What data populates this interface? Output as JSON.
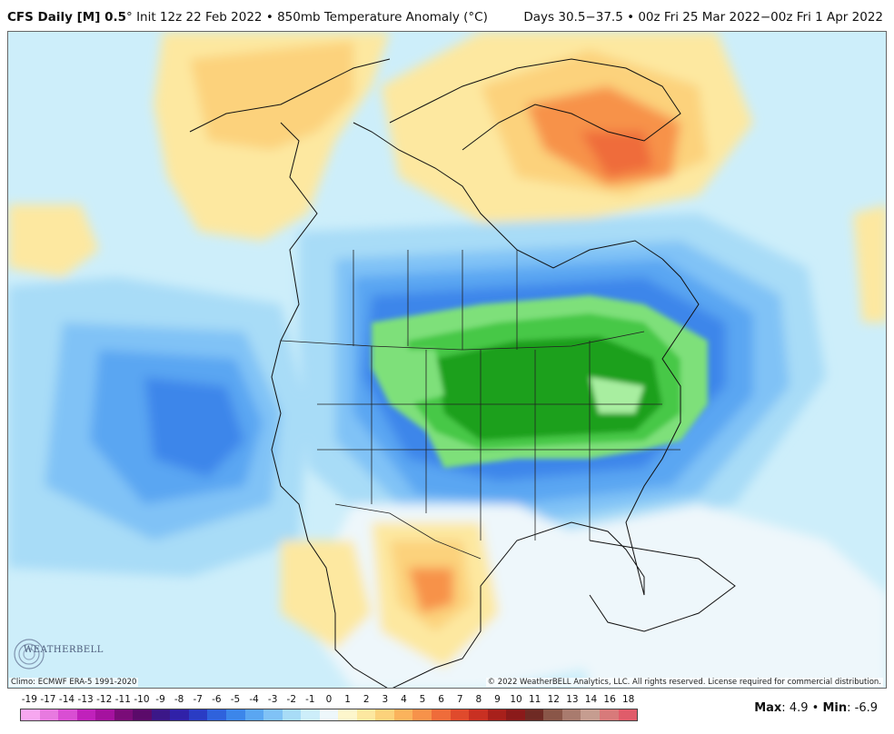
{
  "header": {
    "model": "CFS Daily [M] 0.5",
    "degree": "°",
    "init": "Init 12z 22 Feb 2022",
    "bullet": "•",
    "field": "850mb Temperature Anomaly (°C)",
    "valid": "Days 30.5−37.5 • 00z Fri 25 Mar 2022−00z Fri 1 Apr 2022"
  },
  "footer": {
    "climo": "Climo: ECMWF ERA-5 1991-2020",
    "copyright": "© 2022 WeatherBELL Analytics, LLC. All rights reserved. License required for commercial distribution.",
    "logo": "WEATHERBELL",
    "max_label": "Max",
    "max_value": "4.9",
    "min_label": "Min",
    "min_value": "-6.9",
    "sep": "•"
  },
  "colorbar": {
    "labels": [
      "-19",
      "-17",
      "-14",
      "-13",
      "-12",
      "-11",
      "-10",
      "-9",
      "-8",
      "-7",
      "-6",
      "-5",
      "-4",
      "-3",
      "-2",
      "-1",
      "0",
      "1",
      "2",
      "3",
      "4",
      "5",
      "6",
      "7",
      "8",
      "9",
      "10",
      "11",
      "12",
      "13",
      "14",
      "16",
      "18"
    ],
    "colors": [
      "#f7a7f0",
      "#e87ae0",
      "#d94ed3",
      "#c021bb",
      "#a5129f",
      "#7a0c78",
      "#5b0a6a",
      "#3b1788",
      "#3021a8",
      "#2a3cc4",
      "#2f62dc",
      "#3c86ea",
      "#5aa6f2",
      "#80c2f6",
      "#a8dcf7",
      "#cdeefa",
      "#eef7fb",
      "#fdf6cc",
      "#fde8a0",
      "#fcd27b",
      "#fbb35c",
      "#f7924a",
      "#ef6c3a",
      "#e04a2c",
      "#c93022",
      "#a8201b",
      "#8b1a1a",
      "#6f2a24",
      "#8a5648",
      "#a97b6e",
      "#c69d90",
      "#d87a7a",
      "#e05c6a"
    ]
  },
  "map": {
    "background_color": "#cdeefa",
    "anomaly_colors": {
      "neutral": "#eef7fb",
      "light_blue": "#a8dcf7",
      "mid_blue": "#80c2f6",
      "blue": "#5aa6f2",
      "deep_blue": "#3c86ea",
      "dark_blue": "#2f62dc",
      "pale_yellow": "#fdf6cc",
      "yellow": "#fde8a0",
      "light_orange": "#fcd27b",
      "orange": "#fbb35c",
      "dark_orange": "#f7924a",
      "red_orange": "#ef6c3a",
      "light_green": "#7ee07a",
      "green": "#46c846",
      "dark_green": "#1ea01e",
      "pale_green": "#a8eea0"
    }
  }
}
